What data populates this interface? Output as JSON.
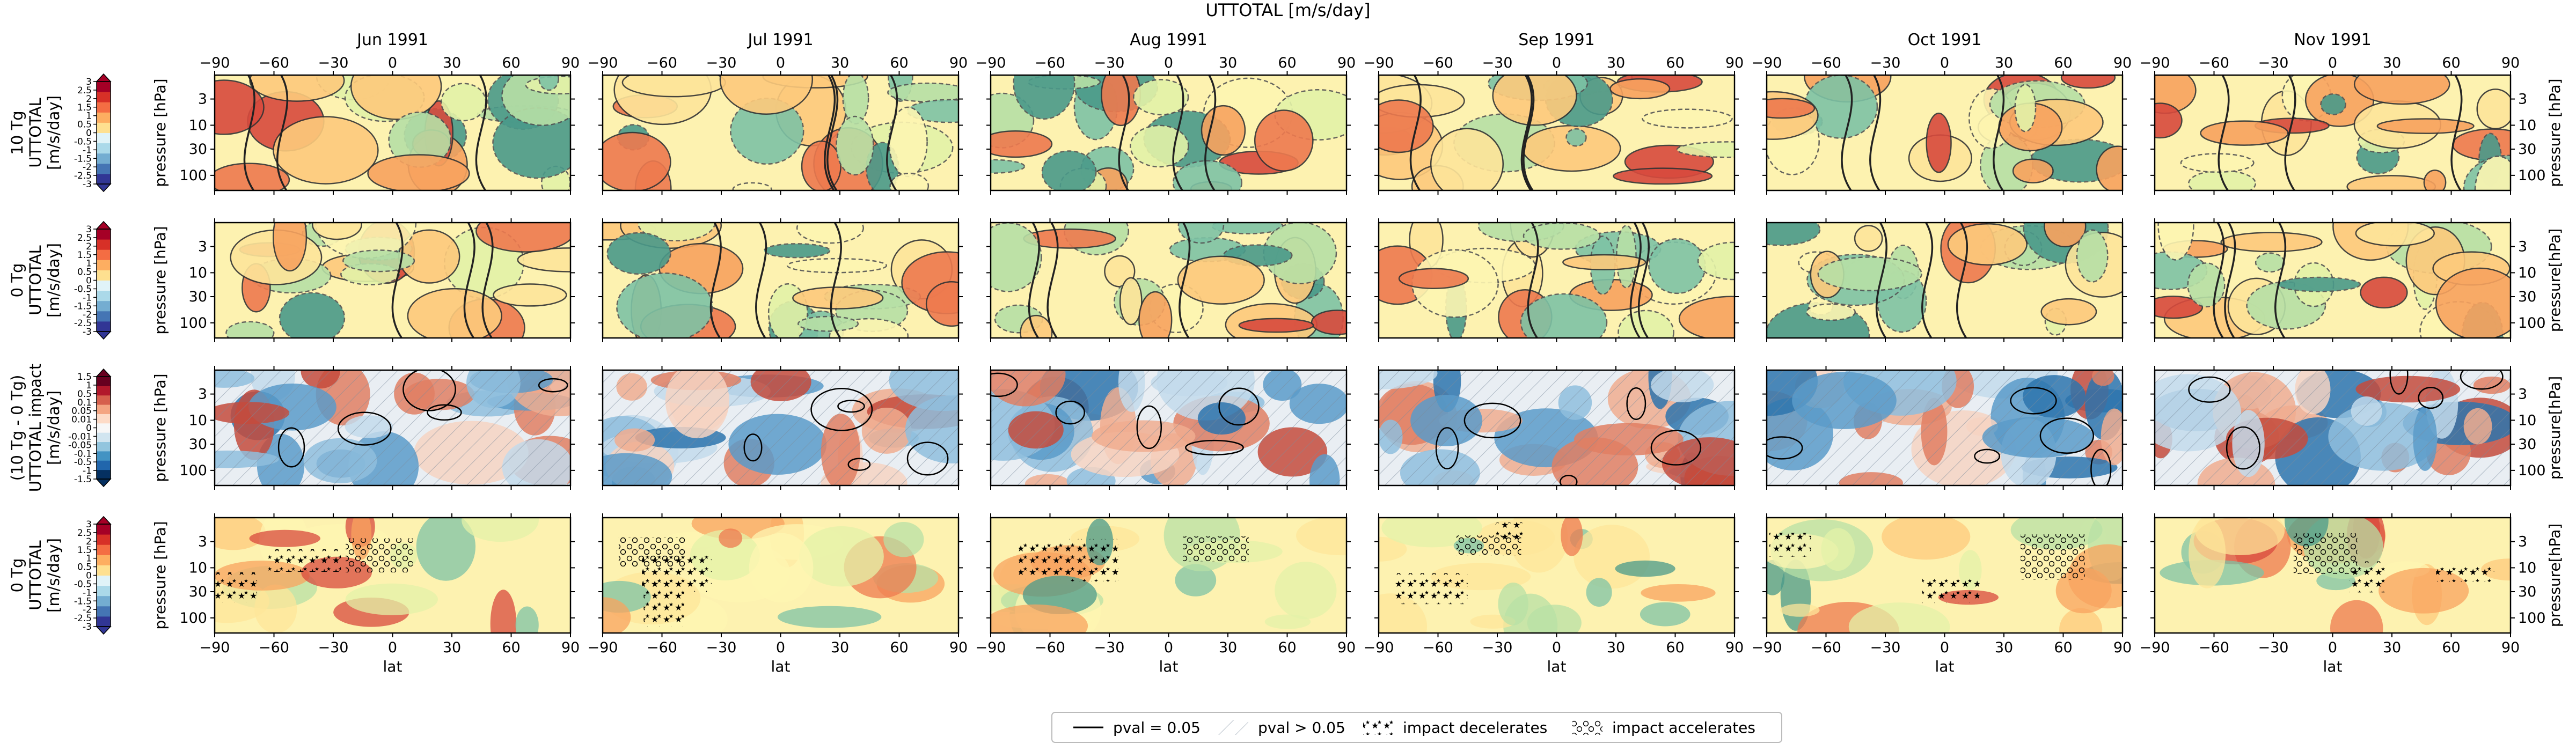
{
  "figure": {
    "title": "UTTOTAL [m/s/day]"
  },
  "columns": [
    "Jun 1991",
    "Jul 1991",
    "Aug 1991",
    "Sep 1991",
    "Oct 1991",
    "Nov 1991"
  ],
  "row_labels": [
    [
      "10 Tg",
      "UTTOTAL",
      "[m/s/day]"
    ],
    [
      "0 Tg",
      "UTTOTAL",
      "[m/s/day]"
    ],
    [
      "(10 Tg - 0 Tg)",
      "UTTOTAL impact",
      "[m/s/day]"
    ],
    [
      "0 Tg",
      "UTTOTAL",
      "[m/s/day]"
    ]
  ],
  "axes": {
    "xlabel": "lat",
    "ylabel": "pressure [hPa]",
    "ylabel_right": [
      "pressure [hPa]",
      "pressure[hPa]",
      "pressure[hPa]",
      "pressure[hPa]"
    ],
    "xticks": [
      "−90",
      "−60",
      "−30",
      "0",
      "30",
      "60",
      "90"
    ],
    "yticks": [
      "3",
      "10",
      "30",
      "100"
    ]
  },
  "colorbars": [
    {
      "ticks": [
        "3",
        "2.5",
        "2",
        "1.5",
        "1",
        "0.5",
        "0",
        "-0.5",
        "-1",
        "-1.5",
        "-2",
        "-2.5",
        "-3"
      ],
      "colors": [
        "#313695",
        "#4575b4",
        "#74add1",
        "#abd9e9",
        "#e0f3f8",
        "#fee090",
        "#fdae61",
        "#f46d43",
        "#d73027",
        "#a50026"
      ]
    },
    {
      "ticks": [
        "3",
        "2.5",
        "2",
        "1.5",
        "1",
        "0.5",
        "0",
        "-0.5",
        "-1",
        "-1.5",
        "-2",
        "-2.5",
        "-3"
      ],
      "colors": [
        "#313695",
        "#4575b4",
        "#74add1",
        "#abd9e9",
        "#e0f3f8",
        "#fee090",
        "#fdae61",
        "#f46d43",
        "#d73027",
        "#a50026"
      ]
    },
    {
      "ticks": [
        "1.5",
        "1",
        "0.5",
        "0.1",
        "0.05",
        "0.01",
        "0",
        "-0.01",
        "-0.05",
        "-0.1",
        "-0.5",
        "-1",
        "-1.5"
      ],
      "colors": [
        "#053061",
        "#2166ac",
        "#4393c3",
        "#92c5de",
        "#d1e5f0",
        "#f7f7f7",
        "#fddbc7",
        "#f4a582",
        "#d6604d",
        "#b2182b",
        "#67001f"
      ]
    },
    {
      "ticks": [
        "3",
        "2.5",
        "2",
        "1.5",
        "1",
        "0.5",
        "0",
        "-0.5",
        "-1",
        "-1.5",
        "-2",
        "-2.5",
        "-3"
      ],
      "colors": [
        "#313695",
        "#4575b4",
        "#74add1",
        "#abd9e9",
        "#e0f3f8",
        "#fee090",
        "#fdae61",
        "#f46d43",
        "#d73027",
        "#a50026"
      ]
    }
  ],
  "legend": [
    {
      "label": "pval = 0.05",
      "kind": "line"
    },
    {
      "label": "pval > 0.05",
      "kind": "hatch"
    },
    {
      "label": "impact decelerates",
      "kind": "stars"
    },
    {
      "label": "impact accelerates",
      "kind": "circles"
    }
  ],
  "chart_data": {
    "type": "heatmap",
    "title": "UTTOTAL [m/s/day]",
    "xlabel": "lat",
    "ylabel": "pressure [hPa]",
    "xlim": [
      -90,
      90
    ],
    "y_scale": "log",
    "y_ticks": [
      3,
      10,
      30,
      100
    ],
    "panels_grid": "4 rows x 6 columns",
    "rows": [
      "10 Tg UTTOTAL",
      "0 Tg UTTOTAL",
      "(10 Tg - 0 Tg) UTTOTAL impact",
      "0 Tg UTTOTAL"
    ],
    "columns": [
      "Jun 1991",
      "Jul 1991",
      "Aug 1991",
      "Sep 1991",
      "Oct 1991",
      "Nov 1991"
    ],
    "colorbar_range_absolute": [
      -3,
      3
    ],
    "colorbar_range_impact": [
      -1.5,
      1.5
    ],
    "field_note": "filled contour fields (approximate visual summary; values not printed)"
  }
}
